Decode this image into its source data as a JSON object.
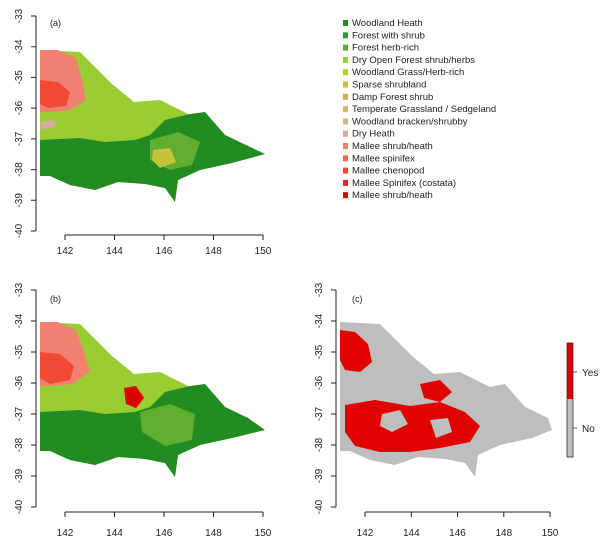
{
  "panels": [
    {
      "id": "a",
      "label": "(a)",
      "x_ticks": [
        "142",
        "144",
        "146",
        "148",
        "150"
      ],
      "y_ticks": [
        "-33",
        "-34",
        "-35",
        "-36",
        "-37",
        "-38",
        "-39",
        "-40"
      ]
    },
    {
      "id": "b",
      "label": "(b)",
      "x_ticks": [
        "142",
        "144",
        "146",
        "148",
        "150"
      ],
      "y_ticks": [
        "-33",
        "-34",
        "-35",
        "-36",
        "-37",
        "-38",
        "-39",
        "-40"
      ]
    },
    {
      "id": "c",
      "label": "(c)",
      "x_ticks": [
        "142",
        "144",
        "146",
        "148",
        "150"
      ],
      "y_ticks": [
        "-33",
        "-34",
        "-35",
        "-36",
        "-37",
        "-38",
        "-39",
        "-40"
      ]
    }
  ],
  "vegetation_legend": [
    {
      "label": "Woodland Heath",
      "color": "#228b22"
    },
    {
      "label": "Forest with shrub",
      "color": "#2e9a2e"
    },
    {
      "label": "Forest herb-rich",
      "color": "#5fae2f"
    },
    {
      "label": "Dry Open Forest shrub/herbs",
      "color": "#9acd32"
    },
    {
      "label": "Woodland Grass/Herb-rich",
      "color": "#b5cc22"
    },
    {
      "label": "Sparse shrubland",
      "color": "#c4c43a"
    },
    {
      "label": "Damp Forest  shrub",
      "color": "#c9b24a"
    },
    {
      "label": "Temperate Grassland / Sedgeland",
      "color": "#d4b96a"
    },
    {
      "label": "Woodland bracken/shrubby",
      "color": "#d0b888"
    },
    {
      "label": "Dry Heath",
      "color": "#d7a9a0"
    },
    {
      "label": "Mallee shrub/heath",
      "color": "#f08070"
    },
    {
      "label": "Mallee spinifex",
      "color": "#f26a50"
    },
    {
      "label": "Mallee chenopod",
      "color": "#f04a35"
    },
    {
      "label": "Mallee Spinifex (costata)",
      "color": "#e82820"
    },
    {
      "label": "Mallee shrub/heath",
      "color": "#dd0000"
    }
  ],
  "change_legend": [
    {
      "label": "Yes",
      "color": "#e00000"
    },
    {
      "label": "No",
      "color": "#bebebe"
    }
  ]
}
